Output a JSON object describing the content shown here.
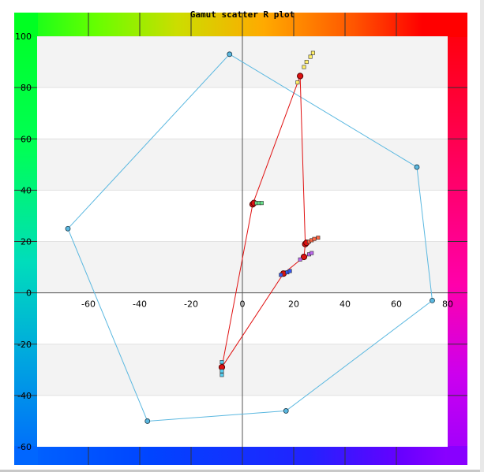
{
  "chart_data": {
    "type": "scatter",
    "title": "Gamut scatter R plot",
    "xlim": [
      -80,
      80
    ],
    "ylim": [
      -60,
      100
    ],
    "x_ticks": [
      -60,
      -40,
      -20,
      0,
      20,
      40,
      60,
      80
    ],
    "y_ticks": [
      100,
      80,
      60,
      40,
      20,
      0,
      -20,
      -40,
      -60
    ],
    "grid": "horizontal bands",
    "background": "hue gradient frame",
    "colors": {
      "gamut_line": "#5bb8e0",
      "gamut_point": "#5bb8e0",
      "path_line": "#e01010",
      "path_point": "#dd1111",
      "band_fill": "#f3f3f3"
    },
    "series": [
      {
        "style": "gamut-polygon",
        "points": [
          [
            -5,
            93
          ],
          [
            68,
            49
          ],
          [
            74,
            -3
          ],
          [
            17,
            -46
          ],
          [
            -37,
            -50
          ],
          [
            -68,
            25
          ]
        ]
      },
      {
        "style": "path-line",
        "points": [
          [
            -8,
            -29
          ],
          [
            16,
            7.5
          ],
          [
            24,
            14
          ],
          [
            24.5,
            19
          ],
          [
            22.5,
            84.5
          ],
          [
            4,
            34.5
          ],
          [
            -8,
            -29
          ]
        ]
      },
      {
        "style": "red-points",
        "points": [
          [
            -8,
            -29
          ],
          [
            4,
            34.5
          ],
          [
            4.5,
            35
          ],
          [
            16,
            7.5
          ],
          [
            24,
            14
          ],
          [
            24.5,
            19
          ],
          [
            25,
            19.5
          ],
          [
            22.5,
            84.5
          ]
        ]
      },
      {
        "style": "yellow-squares",
        "points": [
          [
            21.5,
            82
          ],
          [
            24,
            88
          ],
          [
            25,
            90
          ],
          [
            26.5,
            92
          ],
          [
            27.5,
            93.5
          ]
        ]
      },
      {
        "style": "green-squares",
        "points": [
          [
            5.5,
            35
          ],
          [
            6.5,
            35
          ],
          [
            7.5,
            35
          ]
        ]
      },
      {
        "style": "orange-squares",
        "points": [
          [
            26,
            20
          ],
          [
            27,
            20.5
          ],
          [
            28,
            21
          ],
          [
            29.5,
            21.5
          ]
        ]
      },
      {
        "style": "purple-squares",
        "points": [
          [
            22.5,
            13
          ],
          [
            26,
            15
          ],
          [
            27,
            15.5
          ]
        ]
      },
      {
        "style": "blue-squares",
        "points": [
          [
            15,
            7
          ],
          [
            17.5,
            8
          ],
          [
            18.5,
            8.5
          ]
        ]
      },
      {
        "style": "cyan-squares",
        "points": [
          [
            -8,
            -27
          ],
          [
            -8,
            -30.5
          ],
          [
            -8,
            -32
          ]
        ]
      }
    ]
  }
}
